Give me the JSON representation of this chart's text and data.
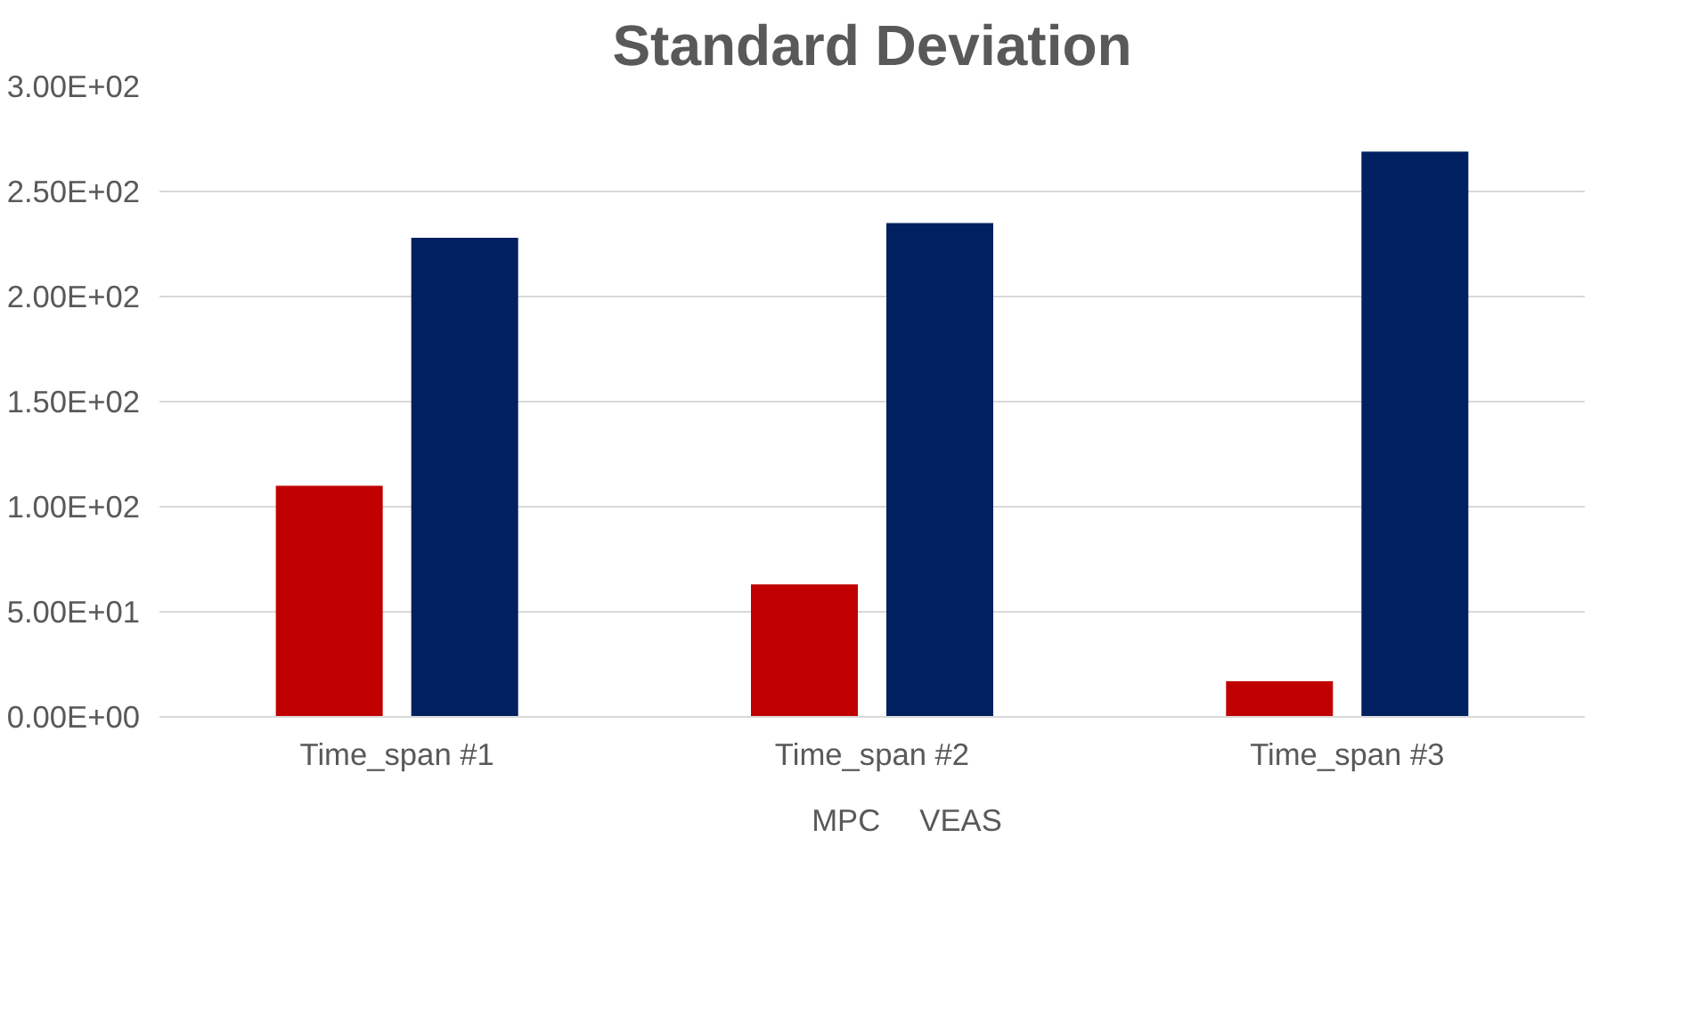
{
  "chart_data": {
    "type": "bar",
    "title": "Standard Deviation",
    "categories": [
      "Time_span #1",
      "Time_span #2",
      "Time_span #3"
    ],
    "series": [
      {
        "name": "MPC",
        "color": "#c00000",
        "values": [
          110,
          63,
          17
        ]
      },
      {
        "name": "VEAS",
        "color": "#002060",
        "values": [
          228,
          235,
          269
        ]
      }
    ],
    "ylim": [
      0,
      300
    ],
    "yticks": [
      {
        "value": 0,
        "label": "0.00E+00"
      },
      {
        "value": 50,
        "label": "5.00E+01"
      },
      {
        "value": 100,
        "label": "1.00E+02"
      },
      {
        "value": 150,
        "label": "1.50E+02"
      },
      {
        "value": 200,
        "label": "2.00E+02"
      },
      {
        "value": 250,
        "label": "2.50E+02"
      },
      {
        "value": 300,
        "label": "3.00E+02"
      }
    ],
    "grid": "y",
    "legend": "bottom"
  }
}
